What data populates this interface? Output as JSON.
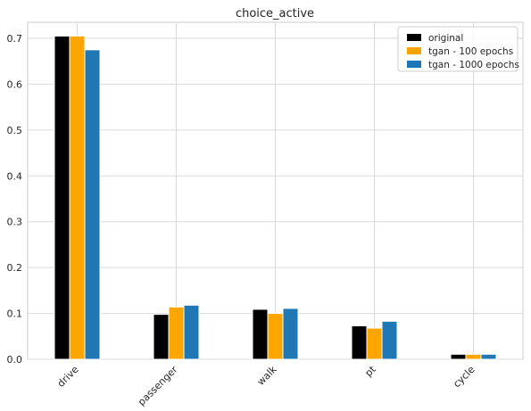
{
  "chart_data": {
    "type": "bar",
    "title": "choice_active",
    "xlabel": "",
    "ylabel": "",
    "categories": [
      "drive",
      "passenger",
      "walk",
      "pt",
      "cycle"
    ],
    "series": [
      {
        "name": "original",
        "color": "#000000",
        "values": [
          0.705,
          0.098,
          0.109,
          0.073,
          0.011
        ]
      },
      {
        "name": "tgan - 100 epochs",
        "color": "#ffa500",
        "values": [
          0.705,
          0.114,
          0.1,
          0.068,
          0.011
        ]
      },
      {
        "name": "tgan - 1000 epochs",
        "color": "#1f77b4",
        "values": [
          0.675,
          0.118,
          0.111,
          0.083,
          0.011
        ]
      }
    ],
    "ylim": [
      0,
      0.735
    ],
    "yticks": [
      0.0,
      0.1,
      0.2,
      0.3,
      0.4,
      0.5,
      0.6,
      0.7
    ],
    "ytick_labels": [
      "0.0",
      "0.1",
      "0.2",
      "0.3",
      "0.4",
      "0.5",
      "0.6",
      "0.7"
    ],
    "grid": true,
    "legend_position": "top-right",
    "xtick_rotation": 45
  }
}
